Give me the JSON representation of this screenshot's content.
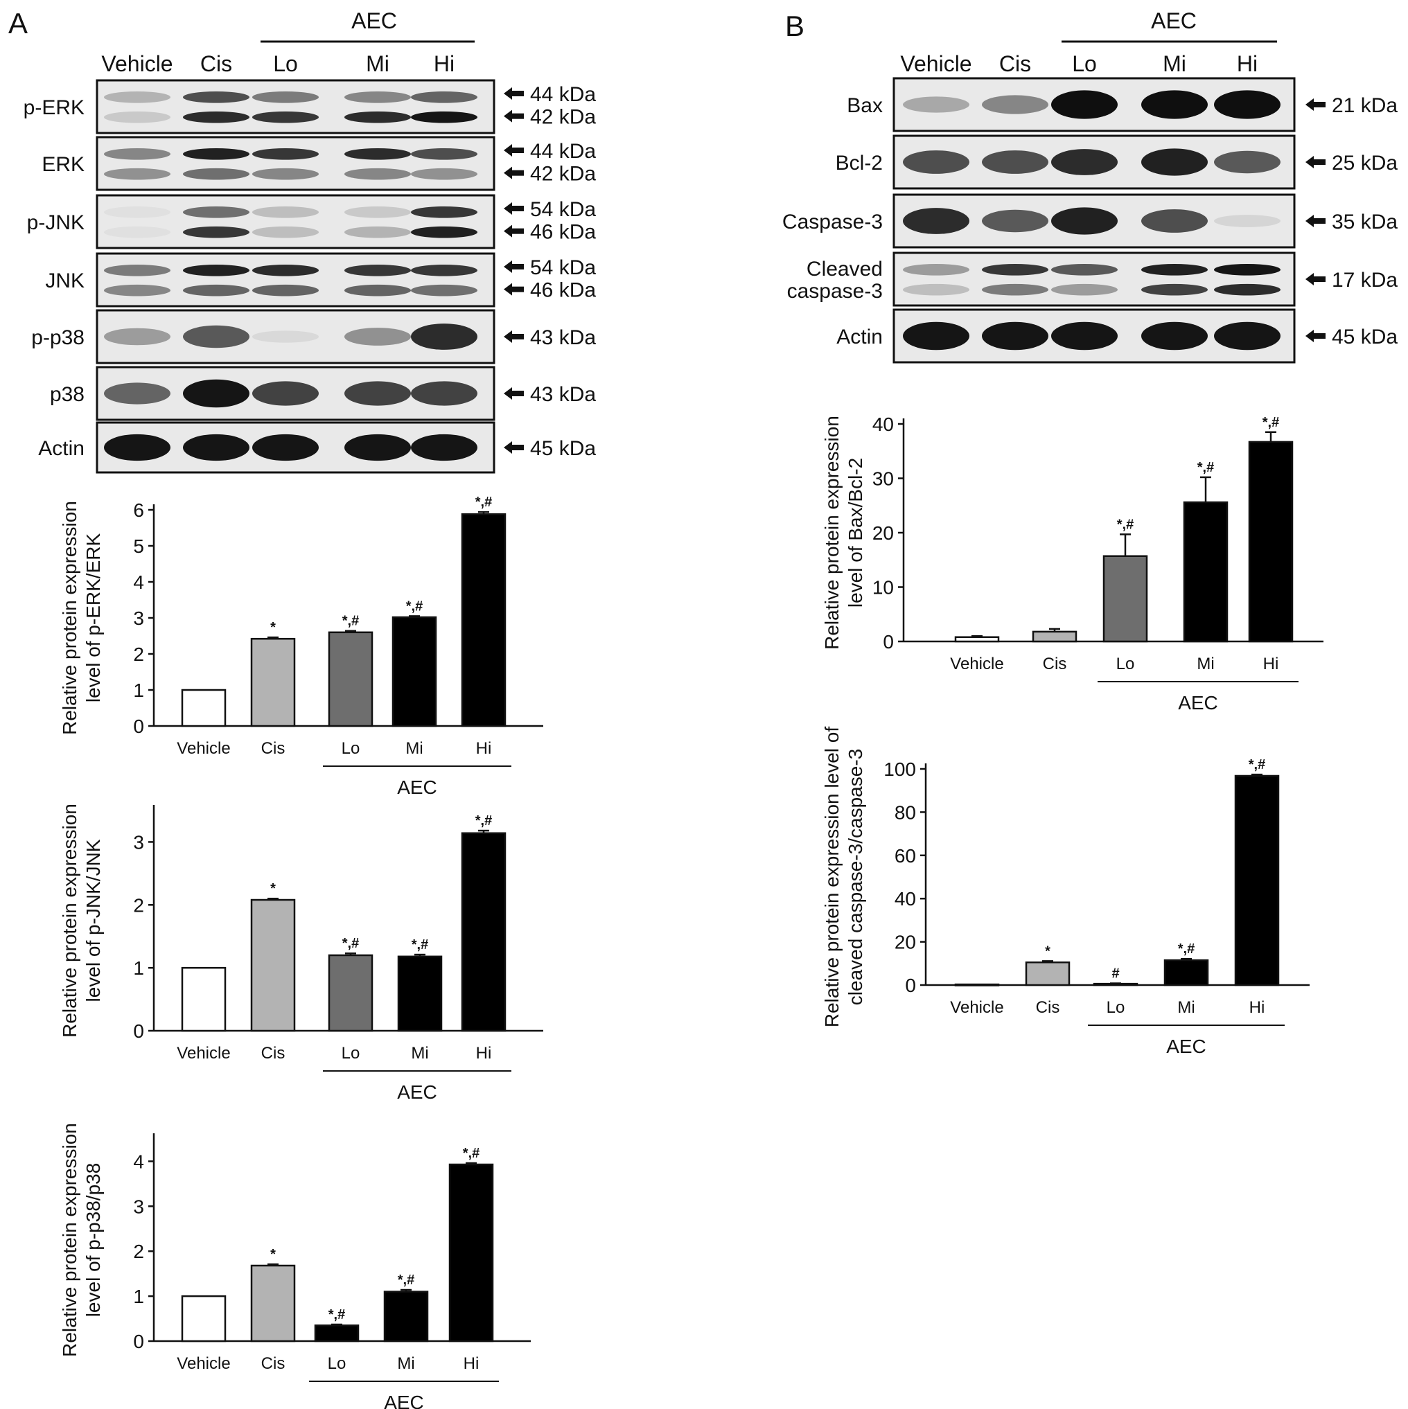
{
  "panels": {
    "A": {
      "letter": "A",
      "blot": {
        "lanes": [
          "Vehicle",
          "Cis",
          "Lo",
          "Mi",
          "Hi"
        ],
        "group_label": "AEC",
        "rows": [
          {
            "label": "p-ERK",
            "markers": [
              "44 kDa",
              "42 kDa"
            ],
            "intensities": [
              [
                0.25,
                0.15
              ],
              [
                0.7,
                0.85
              ],
              [
                0.5,
                0.8
              ],
              [
                0.45,
                0.85
              ],
              [
                0.6,
                0.95
              ]
            ]
          },
          {
            "label": "ERK",
            "markers": [
              "44 kDa",
              "42 kDa"
            ],
            "intensities": [
              [
                0.45,
                0.4
              ],
              [
                0.9,
                0.55
              ],
              [
                0.8,
                0.45
              ],
              [
                0.85,
                0.45
              ],
              [
                0.7,
                0.4
              ]
            ]
          },
          {
            "label": "p-JNK",
            "markers": [
              "54 kDa",
              "46 kDa"
            ],
            "intensities": [
              [
                0.05,
                0.05
              ],
              [
                0.55,
                0.8
              ],
              [
                0.2,
                0.2
              ],
              [
                0.15,
                0.25
              ],
              [
                0.8,
                0.9
              ]
            ]
          },
          {
            "label": "JNK",
            "markers": [
              "54 kDa",
              "46 kDa"
            ],
            "intensities": [
              [
                0.5,
                0.45
              ],
              [
                0.9,
                0.6
              ],
              [
                0.85,
                0.6
              ],
              [
                0.8,
                0.6
              ],
              [
                0.8,
                0.55
              ]
            ]
          },
          {
            "label": "p-p38",
            "markers": [
              "43 kDa"
            ],
            "intensities": [
              [
                0.35
              ],
              [
                0.65
              ],
              [
                0.08
              ],
              [
                0.4
              ],
              [
                0.85
              ]
            ]
          },
          {
            "label": "p38",
            "markers": [
              "43 kDa"
            ],
            "intensities": [
              [
                0.6
              ],
              [
                0.95
              ],
              [
                0.75
              ],
              [
                0.75
              ],
              [
                0.75
              ]
            ]
          },
          {
            "label": "Actin",
            "markers": [
              "45 kDa"
            ],
            "intensities": [
              [
                0.95
              ],
              [
                0.95
              ],
              [
                0.95
              ],
              [
                0.95
              ],
              [
                0.95
              ]
            ]
          }
        ]
      }
    },
    "B": {
      "letter": "B",
      "blot": {
        "lanes": [
          "Vehicle",
          "Cis",
          "Lo",
          "Mi",
          "Hi"
        ],
        "group_label": "AEC",
        "rows": [
          {
            "label": "Bax",
            "markers": [
              "21 kDa"
            ],
            "intensities": [
              [
                0.3
              ],
              [
                0.45
              ],
              [
                0.98
              ],
              [
                0.98
              ],
              [
                0.98
              ]
            ]
          },
          {
            "label": "Bcl-2",
            "markers": [
              "25 kDa"
            ],
            "intensities": [
              [
                0.7
              ],
              [
                0.7
              ],
              [
                0.85
              ],
              [
                0.9
              ],
              [
                0.65
              ]
            ]
          },
          {
            "label": "Caspase-3",
            "markers": [
              "35 kDa"
            ],
            "intensities": [
              [
                0.85
              ],
              [
                0.65
              ],
              [
                0.9
              ],
              [
                0.7
              ],
              [
                0.1
              ]
            ]
          },
          {
            "label": "Cleaved\ncaspase-3",
            "markers": [
              "17 kDa"
            ],
            "intensities": [
              [
                0.35,
                0.2
              ],
              [
                0.8,
                0.5
              ],
              [
                0.65,
                0.35
              ],
              [
                0.9,
                0.75
              ],
              [
                0.95,
                0.85
              ]
            ]
          },
          {
            "label": "Actin",
            "markers": [
              "45 kDa"
            ],
            "intensities": [
              [
                0.95
              ],
              [
                0.95
              ],
              [
                0.95
              ],
              [
                0.95
              ],
              [
                0.95
              ]
            ]
          }
        ]
      }
    }
  },
  "chart_data": [
    {
      "type": "bar",
      "panel": "A",
      "categories": [
        "Vehicle",
        "Cis",
        "Lo",
        "Mi",
        "Hi"
      ],
      "values": [
        1.0,
        2.42,
        2.6,
        3.02,
        5.88
      ],
      "errors": [
        0,
        0.04,
        0.04,
        0.03,
        0.06
      ],
      "annotations": [
        "",
        "*",
        "*,#",
        "*,#",
        "*,#"
      ],
      "bar_colors": [
        "#ffffff",
        "#b3b3b3",
        "#6e6e6e",
        "#000000",
        "#000000"
      ],
      "ylabel": "Relative protein expression\nlevel of p-ERK/ERK",
      "xlabel": "",
      "group_label": "AEC",
      "yticks": [
        0,
        1,
        2,
        3,
        4,
        5,
        6
      ],
      "ylim": [
        0,
        6
      ]
    },
    {
      "type": "bar",
      "panel": "A",
      "categories": [
        "Vehicle",
        "Cis",
        "Lo",
        "Mi",
        "Hi"
      ],
      "values": [
        1.0,
        2.08,
        1.2,
        1.18,
        3.14
      ],
      "errors": [
        0,
        0.02,
        0.03,
        0.03,
        0.04
      ],
      "annotations": [
        "",
        "*",
        "*,#",
        "*,#",
        "*,#"
      ],
      "bar_colors": [
        "#ffffff",
        "#b3b3b3",
        "#6e6e6e",
        "#000000",
        "#000000"
      ],
      "ylabel": "Relative protein expression\nlevel of p-JNK/JNK",
      "xlabel": "",
      "group_label": "AEC",
      "yticks": [
        0,
        1,
        2,
        3
      ],
      "ylim": [
        0,
        3.5
      ]
    },
    {
      "type": "bar",
      "panel": "A",
      "categories": [
        "Vehicle",
        "Cis",
        "Lo",
        "Mi",
        "Hi"
      ],
      "values": [
        1.0,
        1.68,
        0.35,
        1.1,
        3.93
      ],
      "errors": [
        0,
        0.03,
        0.02,
        0.04,
        0.03
      ],
      "annotations": [
        "",
        "*",
        "*,#",
        "*,#",
        "*,#"
      ],
      "bar_colors": [
        "#ffffff",
        "#b3b3b3",
        "#000000",
        "#000000",
        "#000000"
      ],
      "ylabel": "Relative protein expression\nlevel of p-p38/p38",
      "xlabel": "",
      "group_label": "AEC",
      "yticks": [
        0,
        1,
        2,
        3,
        4
      ],
      "ylim": [
        0,
        4.5
      ]
    },
    {
      "type": "bar",
      "panel": "B",
      "categories": [
        "Vehicle",
        "Cis",
        "Lo",
        "Mi",
        "Hi"
      ],
      "values": [
        0.8,
        1.8,
        15.7,
        25.6,
        36.7
      ],
      "errors": [
        0.2,
        0.5,
        4.0,
        4.6,
        1.8
      ],
      "annotations": [
        "",
        "",
        "*,#",
        "*,#",
        "*,#"
      ],
      "bar_colors": [
        "#ffffff",
        "#b3b3b3",
        "#6e6e6e",
        "#000000",
        "#000000"
      ],
      "ylabel": "Relative protein expression\nlevel of Bax/Bcl-2",
      "xlabel": "",
      "group_label": "AEC",
      "yticks": [
        0,
        10,
        20,
        30,
        40
      ],
      "ylim": [
        0,
        40
      ]
    },
    {
      "type": "bar",
      "panel": "B",
      "categories": [
        "Vehicle",
        "Cis",
        "Lo",
        "Mi",
        "Hi"
      ],
      "values": [
        0.3,
        10.5,
        0.6,
        11.5,
        96.8
      ],
      "errors": [
        0,
        0.6,
        0.2,
        0.6,
        0.6
      ],
      "annotations": [
        "",
        "*",
        "#",
        "*,#",
        "*,#"
      ],
      "bar_colors": [
        "#ffffff",
        "#b3b3b3",
        "#6e6e6e",
        "#000000",
        "#000000"
      ],
      "ylabel": "Relative protein expression level of\ncleaved caspase-3/caspase-3",
      "xlabel": "",
      "group_label": "AEC",
      "yticks": [
        0,
        20,
        40,
        60,
        80,
        100
      ],
      "ylim": [
        0,
        100
      ]
    }
  ]
}
